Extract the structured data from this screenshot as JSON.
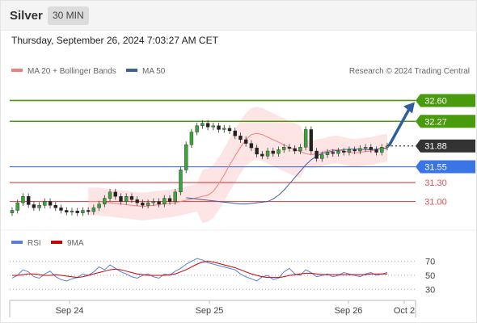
{
  "header": {
    "symbol": "Silver",
    "timeframe": "30 MIN",
    "datetime": "Thursday, September 26, 2024 7:03:27 AM CET"
  },
  "legend": {
    "ma20": "MA 20 + Bollinger Bands",
    "ma50": "MA 50",
    "credit": "Research © 2024 Trading Central",
    "rsi": "RSI",
    "rsi_ma": "9MA"
  },
  "colors": {
    "resistance": "#4a9a0e",
    "current": "#333333",
    "support_blue": "#3a75e8",
    "support_red": "#e05050",
    "ma20": "#f08080",
    "ma50": "#3c5f9e",
    "bands": "#fde0e0",
    "arrow": "#2e5e9e",
    "rsi": "#5b7fd8",
    "rsi_ma": "#cc0000"
  },
  "chart_data": {
    "type": "candlestick",
    "x_ticks": [
      "Sep 24",
      "Sep 25",
      "Sep 26",
      "Oct 2"
    ],
    "ylim": [
      30.7,
      32.9
    ],
    "levels": [
      {
        "value": 32.6,
        "label": "32.60",
        "kind": "resistance"
      },
      {
        "value": 32.27,
        "label": "32.27",
        "kind": "resistance"
      },
      {
        "value": 31.88,
        "label": "31.88",
        "kind": "current"
      },
      {
        "value": 31.55,
        "label": "31.55",
        "kind": "support"
      },
      {
        "value": 31.3,
        "label": "31.30",
        "kind": "support"
      },
      {
        "value": 31.0,
        "label": "31.00",
        "kind": "support"
      }
    ],
    "closes": [
      30.86,
      30.98,
      31.08,
      30.95,
      30.9,
      30.94,
      31.0,
      30.94,
      30.9,
      30.86,
      30.83,
      30.85,
      30.82,
      30.86,
      30.84,
      30.9,
      30.96,
      31.05,
      31.15,
      31.08,
      31.0,
      31.08,
      31.03,
      30.98,
      30.94,
      30.98,
      31.0,
      30.96,
      31.05,
      31.0,
      31.15,
      31.5,
      31.9,
      32.1,
      32.2,
      32.24,
      32.18,
      32.2,
      32.14,
      32.16,
      32.12,
      32.04,
      31.98,
      31.92,
      31.85,
      31.75,
      31.72,
      31.8,
      31.76,
      31.82,
      31.86,
      31.84,
      31.8,
      31.86,
      32.14,
      31.8,
      31.68,
      31.74,
      31.78,
      31.76,
      31.8,
      31.78,
      31.82,
      31.8,
      31.84,
      31.86,
      31.82,
      31.78,
      31.86,
      31.88
    ],
    "ma20": [
      31.0,
      31.0,
      31.0,
      30.99,
      30.98,
      30.97,
      30.96,
      30.95,
      30.94,
      30.93,
      30.92,
      30.93,
      30.94,
      30.95,
      30.96,
      30.97,
      30.98,
      31.0,
      31.02,
      31.04,
      31.06,
      31.08,
      31.1,
      31.16,
      31.28,
      31.42,
      31.58,
      31.72,
      31.86,
      31.98,
      32.06,
      32.08,
      32.06,
      32.02,
      31.98,
      31.94,
      31.9,
      31.86,
      31.82,
      31.79,
      31.76,
      31.74,
      31.76,
      31.78,
      31.8,
      31.82,
      31.82,
      31.8,
      31.78,
      31.77,
      31.78,
      31.79,
      31.8,
      31.82,
      31.84,
      31.85
    ],
    "ma50": [
      31.06,
      31.05,
      31.04,
      31.03,
      31.02,
      31.01,
      31.0,
      30.99,
      30.98,
      30.97,
      30.96,
      30.96,
      30.97,
      30.98,
      30.99,
      31.0,
      31.04,
      31.1,
      31.18,
      31.28,
      31.38,
      31.48,
      31.58,
      31.66,
      31.72,
      31.76,
      31.78,
      31.8,
      31.81,
      31.82,
      31.83,
      31.83,
      31.83,
      31.82,
      31.82,
      31.83,
      31.84,
      31.84
    ],
    "forecast_target": 32.6,
    "rsi": {
      "ylim": [
        20,
        80
      ],
      "levels": [
        70,
        50,
        30
      ],
      "values": [
        46,
        50,
        58,
        55,
        48,
        46,
        52,
        56,
        48,
        44,
        42,
        45,
        47,
        52,
        50,
        55,
        62,
        58,
        65,
        60,
        55,
        52,
        48,
        46,
        50,
        52,
        48,
        46,
        52,
        50,
        56,
        60,
        66,
        70,
        74,
        72,
        68,
        66,
        64,
        62,
        60,
        58,
        52,
        48,
        45,
        42,
        48,
        50,
        44,
        46,
        55,
        60,
        52,
        50,
        58,
        54,
        48,
        50,
        52,
        48,
        50,
        54,
        52,
        50,
        48,
        52,
        54,
        50,
        52,
        54
      ],
      "ma": [
        50,
        50,
        51,
        52,
        52,
        51,
        50,
        50,
        51,
        50,
        49,
        48,
        47,
        48,
        50,
        52,
        54,
        56,
        58,
        59,
        58,
        56,
        54,
        52,
        51,
        50,
        50,
        50,
        50,
        51,
        52,
        55,
        58,
        62,
        66,
        69,
        70,
        69,
        67,
        65,
        63,
        61,
        58,
        55,
        52,
        50,
        48,
        47,
        47,
        47,
        48,
        50,
        51,
        52,
        53,
        53,
        52,
        51,
        51,
        51,
        51,
        51,
        51,
        51,
        51,
        51,
        52,
        52,
        52,
        52
      ]
    }
  }
}
